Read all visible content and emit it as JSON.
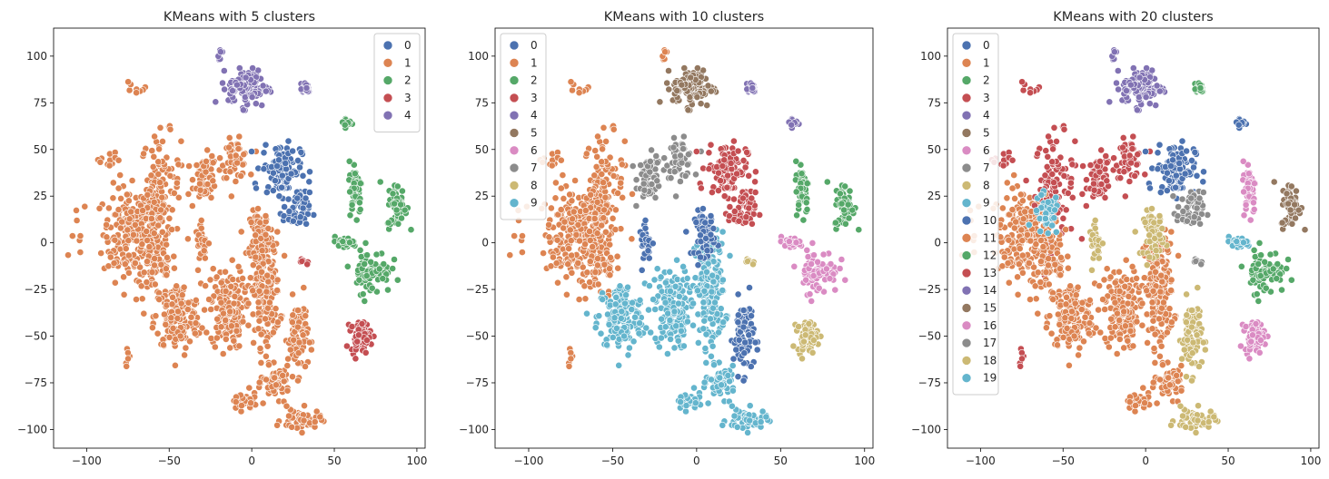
{
  "palette": [
    "#4c72b0",
    "#dd8452",
    "#55a868",
    "#c44e52",
    "#8172b3",
    "#937860",
    "#da8bc3",
    "#8c8c8c",
    "#ccb974",
    "#64b5cd"
  ],
  "chart_data": [
    {
      "type": "scatter",
      "title": "KMeans with 5 clusters",
      "xlim": [
        -120,
        105
      ],
      "ylim": [
        -110,
        115
      ],
      "xticks": [
        -100,
        -50,
        0,
        50,
        100
      ],
      "yticks": [
        -100,
        -75,
        -50,
        -25,
        0,
        25,
        50,
        75,
        100
      ],
      "legend": {
        "position": "top-right",
        "labels": [
          "0",
          "1",
          "2",
          "3",
          "4"
        ]
      },
      "grid": false
    },
    {
      "type": "scatter",
      "title": "KMeans with 10 clusters",
      "xlim": [
        -120,
        105
      ],
      "ylim": [
        -110,
        115
      ],
      "xticks": [
        -100,
        -50,
        0,
        50,
        100
      ],
      "yticks": [
        -100,
        -75,
        -50,
        -25,
        0,
        25,
        50,
        75,
        100
      ],
      "legend": {
        "position": "top-left",
        "labels": [
          "0",
          "1",
          "2",
          "3",
          "4",
          "5",
          "6",
          "7",
          "8",
          "9"
        ]
      },
      "grid": false
    },
    {
      "type": "scatter",
      "title": "KMeans with 20 clusters",
      "xlim": [
        -120,
        105
      ],
      "ylim": [
        -110,
        115
      ],
      "xticks": [
        -100,
        -50,
        0,
        50,
        100
      ],
      "yticks": [
        -100,
        -75,
        -50,
        -25,
        0,
        25,
        50,
        75,
        100
      ],
      "legend": {
        "position": "top-left",
        "labels": [
          "0",
          "1",
          "2",
          "3",
          "4",
          "5",
          "6",
          "7",
          "8",
          "9",
          "10",
          "11",
          "12",
          "13",
          "14",
          "15",
          "16",
          "17",
          "18",
          "19"
        ]
      },
      "grid": false
    }
  ],
  "regions": [
    {
      "x": -105,
      "y": 0,
      "rx": 6,
      "ry": 25,
      "n": 8,
      "c": [
        1,
        1,
        1
      ],
      "o": [
        0,
        0
      ]
    },
    {
      "x": -75,
      "y": 5,
      "rx": 15,
      "ry": 25,
      "n": 180,
      "c": [
        1,
        1,
        11
      ],
      "o": [
        0,
        0
      ]
    },
    {
      "x": -55,
      "y": 30,
      "rx": 12,
      "ry": 28,
      "n": 110,
      "c": [
        1,
        1,
        3
      ],
      "o": [
        0,
        0
      ]
    },
    {
      "x": -58,
      "y": -10,
      "rx": 12,
      "ry": 22,
      "n": 90,
      "c": [
        1,
        1,
        11
      ],
      "o": [
        0,
        0
      ]
    },
    {
      "x": -60,
      "y": 15,
      "rx": 8,
      "ry": 12,
      "n": 40,
      "c": [
        1,
        1,
        9
      ],
      "o": [
        0,
        0
      ]
    },
    {
      "x": -28,
      "y": 35,
      "rx": 7,
      "ry": 12,
      "n": 60,
      "c": [
        1,
        7,
        13
      ],
      "o": [
        0,
        0
      ]
    },
    {
      "x": -10,
      "y": 45,
      "rx": 8,
      "ry": 10,
      "n": 55,
      "c": [
        1,
        7,
        3
      ],
      "o": [
        0,
        0
      ]
    },
    {
      "x": -45,
      "y": -40,
      "rx": 14,
      "ry": 18,
      "n": 160,
      "c": [
        1,
        9,
        11
      ],
      "o": [
        0,
        0
      ]
    },
    {
      "x": -15,
      "y": -35,
      "rx": 10,
      "ry": 22,
      "n": 150,
      "c": [
        1,
        9,
        11
      ],
      "o": [
        0,
        0
      ]
    },
    {
      "x": 8,
      "y": -25,
      "rx": 9,
      "ry": 30,
      "n": 200,
      "c": [
        1,
        9,
        11
      ],
      "o": [
        0,
        0
      ]
    },
    {
      "x": 5,
      "y": 5,
      "rx": 6,
      "ry": 12,
      "n": 60,
      "c": [
        1,
        0,
        8
      ],
      "o": [
        0,
        0
      ]
    },
    {
      "x": -30,
      "y": 0,
      "rx": 4,
      "ry": 10,
      "n": 25,
      "c": [
        1,
        0,
        18
      ],
      "o": [
        0,
        0
      ]
    },
    {
      "x": 28,
      "y": -50,
      "rx": 6,
      "ry": 20,
      "n": 90,
      "c": [
        1,
        0,
        18
      ],
      "o": [
        0,
        0
      ]
    },
    {
      "x": 15,
      "y": -75,
      "rx": 8,
      "ry": 8,
      "n": 60,
      "c": [
        1,
        9,
        11
      ],
      "o": [
        0,
        0
      ]
    },
    {
      "x": -5,
      "y": -85,
      "rx": 8,
      "ry": 5,
      "n": 40,
      "c": [
        1,
        9,
        11
      ],
      "o": [
        0,
        0
      ]
    },
    {
      "x": 30,
      "y": -95,
      "rx": 12,
      "ry": 6,
      "n": 55,
      "c": [
        1,
        9,
        18
      ],
      "o": [
        0,
        0
      ]
    },
    {
      "x": -75,
      "y": -62,
      "rx": 2,
      "ry": 4,
      "n": 6,
      "c": [
        1,
        1,
        3
      ],
      "o": [
        0,
        0
      ]
    },
    {
      "x": -20,
      "y": 101,
      "rx": 2,
      "ry": 3,
      "n": 6,
      "c": [
        4,
        1,
        14
      ],
      "o": [
        0,
        0
      ]
    },
    {
      "x": -70,
      "y": 82,
      "rx": 8,
      "ry": 5,
      "n": 8,
      "c": [
        1,
        1,
        3
      ],
      "o": [
        0,
        0
      ]
    },
    {
      "x": -85,
      "y": 45,
      "rx": 12,
      "ry": 5,
      "n": 12,
      "c": [
        1,
        1,
        13
      ],
      "o": [
        0,
        0
      ]
    },
    {
      "x": 18,
      "y": 40,
      "rx": 12,
      "ry": 14,
      "n": 110,
      "c": [
        0,
        3,
        0
      ],
      "o": [
        0,
        0
      ]
    },
    {
      "x": 27,
      "y": 17,
      "rx": 8,
      "ry": 10,
      "n": 60,
      "c": [
        0,
        3,
        17
      ],
      "o": [
        0,
        0
      ]
    },
    {
      "x": -2,
      "y": 83,
      "rx": 12,
      "ry": 10,
      "n": 110,
      "c": [
        4,
        5,
        14
      ],
      "o": [
        0,
        0
      ]
    },
    {
      "x": 32,
      "y": 83,
      "rx": 4,
      "ry": 4,
      "n": 20,
      "c": [
        4,
        4,
        12
      ],
      "o": [
        0,
        0
      ]
    },
    {
      "x": 63,
      "y": 30,
      "rx": 4,
      "ry": 14,
      "n": 50,
      "c": [
        2,
        2,
        16
      ],
      "o": [
        0,
        0
      ]
    },
    {
      "x": 88,
      "y": 20,
      "rx": 6,
      "ry": 12,
      "n": 60,
      "c": [
        2,
        2,
        15
      ],
      "o": [
        0,
        0
      ]
    },
    {
      "x": 58,
      "y": 64,
      "rx": 4,
      "ry": 3,
      "n": 12,
      "c": [
        2,
        4,
        10
      ],
      "o": [
        0,
        0
      ]
    },
    {
      "x": 72,
      "y": -15,
      "rx": 12,
      "ry": 12,
      "n": 70,
      "c": [
        2,
        6,
        12
      ],
      "o": [
        0,
        0
      ]
    },
    {
      "x": 56,
      "y": 0,
      "rx": 8,
      "ry": 3,
      "n": 30,
      "c": [
        2,
        6,
        19
      ],
      "o": [
        0,
        0
      ]
    },
    {
      "x": 66,
      "y": -50,
      "rx": 6,
      "ry": 8,
      "n": 70,
      "c": [
        3,
        8,
        16
      ],
      "o": [
        0,
        0
      ]
    },
    {
      "x": 32,
      "y": -10,
      "rx": 3,
      "ry": 2,
      "n": 6,
      "c": [
        3,
        8,
        17
      ],
      "o": [
        0,
        0
      ]
    }
  ]
}
